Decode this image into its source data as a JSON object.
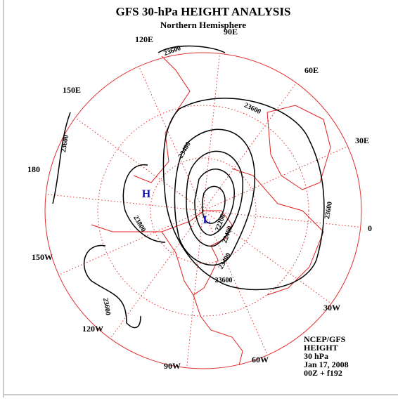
{
  "header": {
    "title": "GFS 30-hPa HEIGHT ANALYSIS",
    "subtitle": "Northern Hemisphere"
  },
  "longitude_labels": [
    "90E",
    "60E",
    "30E",
    "0",
    "30W",
    "60W",
    "90W",
    "120W",
    "150W",
    "180",
    "150E",
    "120E"
  ],
  "contour_labels": [
    "23600",
    "23600",
    "23600",
    "23600",
    "23600",
    "23600",
    "23400",
    "23400",
    "23800",
    "22200",
    "22400"
  ],
  "centers": [
    "H",
    "L"
  ],
  "info": [
    "NCEP/GFS",
    "HEIGHT",
    "30 hPa",
    "Jan 17, 2008",
    "00Z + f192"
  ]
}
